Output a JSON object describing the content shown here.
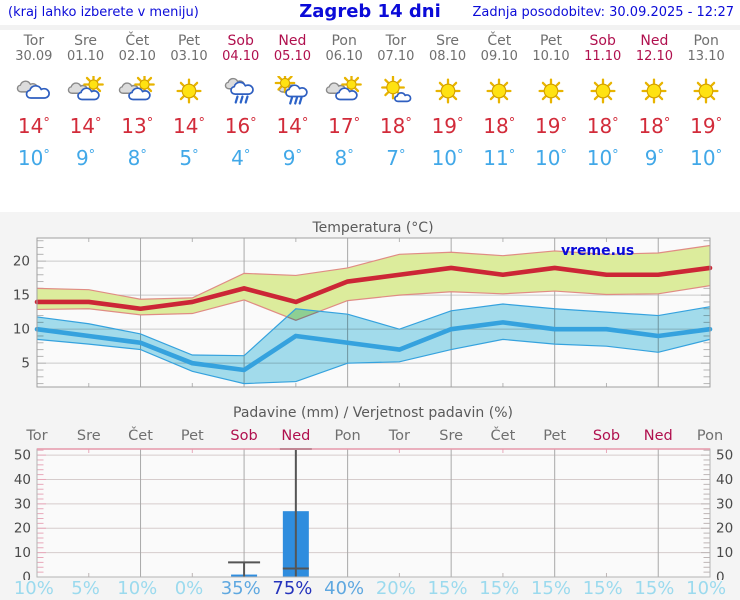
{
  "header": {
    "note_left": "(kraj lahko izberete v meniju)",
    "title": "Zagreb 14 dni",
    "updated": "Zadnja posodobitev: 30.09.2025 - 12:27"
  },
  "degree_symbol": "°",
  "watermark": "vreme.us",
  "days": [
    {
      "name": "Tor",
      "date": "30.09",
      "weekend": false,
      "icon": "cloudy",
      "tmax": 14,
      "tmin": 10,
      "precip_prob": "10%",
      "prob_level": "low"
    },
    {
      "name": "Sre",
      "date": "01.10",
      "weekend": false,
      "icon": "sun-cloud",
      "tmax": 14,
      "tmin": 9,
      "precip_prob": "5%",
      "prob_level": "low"
    },
    {
      "name": "Čet",
      "date": "02.10",
      "weekend": false,
      "icon": "sun-cloud",
      "tmax": 13,
      "tmin": 8,
      "precip_prob": "10%",
      "prob_level": "low"
    },
    {
      "name": "Pet",
      "date": "03.10",
      "weekend": false,
      "icon": "sunny",
      "tmax": 14,
      "tmin": 5,
      "precip_prob": "0%",
      "prob_level": "low"
    },
    {
      "name": "Sob",
      "date": "04.10",
      "weekend": true,
      "icon": "rain",
      "tmax": 16,
      "tmin": 4,
      "precip_prob": "35%",
      "prob_level": "med"
    },
    {
      "name": "Ned",
      "date": "05.10",
      "weekend": true,
      "icon": "sun-rain",
      "tmax": 14,
      "tmin": 9,
      "precip_prob": "75%",
      "prob_level": "high"
    },
    {
      "name": "Pon",
      "date": "06.10",
      "weekend": false,
      "icon": "sun-cloud",
      "tmax": 17,
      "tmin": 8,
      "precip_prob": "40%",
      "prob_level": "med"
    },
    {
      "name": "Tor",
      "date": "07.10",
      "weekend": false,
      "icon": "sun-small-cloud",
      "tmax": 18,
      "tmin": 7,
      "precip_prob": "20%",
      "prob_level": "low"
    },
    {
      "name": "Sre",
      "date": "08.10",
      "weekend": false,
      "icon": "sunny",
      "tmax": 19,
      "tmin": 10,
      "precip_prob": "15%",
      "prob_level": "low"
    },
    {
      "name": "Čet",
      "date": "09.10",
      "weekend": false,
      "icon": "sunny",
      "tmax": 18,
      "tmin": 11,
      "precip_prob": "15%",
      "prob_level": "low"
    },
    {
      "name": "Pet",
      "date": "10.10",
      "weekend": false,
      "icon": "sunny",
      "tmax": 19,
      "tmin": 10,
      "precip_prob": "15%",
      "prob_level": "low"
    },
    {
      "name": "Sob",
      "date": "11.10",
      "weekend": true,
      "icon": "sunny",
      "tmax": 18,
      "tmin": 10,
      "precip_prob": "15%",
      "prob_level": "low"
    },
    {
      "name": "Ned",
      "date": "12.10",
      "weekend": true,
      "icon": "sunny",
      "tmax": 18,
      "tmin": 9,
      "precip_prob": "15%",
      "prob_level": "low"
    },
    {
      "name": "Pon",
      "date": "13.10",
      "weekend": false,
      "icon": "sunny",
      "tmax": 19,
      "tmin": 10,
      "precip_prob": "10%",
      "prob_level": "low"
    }
  ],
  "chart_data": [
    {
      "type": "line",
      "title": "Temperatura (°C)",
      "x_labels": [
        "Tor 30.09",
        "Sre 01.10",
        "Čet 02.10",
        "Pet 03.10",
        "Sob 04.10",
        "Ned 05.10",
        "Pon 06.10",
        "Tor 07.10",
        "Sre 08.10",
        "Čet 09.10",
        "Pet 10.10",
        "Sob 11.10",
        "Ned 12.10",
        "Pon 13.10"
      ],
      "ylabel": "",
      "yticks": [
        5,
        10,
        15,
        20
      ],
      "ylim": [
        1.5,
        23.4
      ],
      "grid": true,
      "watermark": "vreme.us",
      "series": [
        {
          "name": "temp-max",
          "color": "#cc2636",
          "values": [
            14,
            14,
            13,
            14,
            16,
            14,
            17,
            18,
            19,
            18,
            19,
            18,
            18,
            19
          ]
        },
        {
          "name": "temp-min",
          "color": "#35a2de",
          "values": [
            10,
            9,
            8,
            5,
            4,
            9,
            8,
            7,
            10,
            11,
            10,
            10,
            9,
            10
          ]
        }
      ],
      "bands": [
        {
          "name": "temp-max-range",
          "fill": "#dcec9c",
          "edge": "#e08c84",
          "hi": [
            16,
            15.8,
            14.4,
            14.6,
            18.2,
            17.9,
            19,
            21,
            21.3,
            20.8,
            21.5,
            21,
            21.2,
            22.3
          ],
          "lo": [
            12.9,
            13,
            12.1,
            12.3,
            14.3,
            11.3,
            14.2,
            15,
            15.5,
            15.2,
            15.6,
            15.1,
            15.2,
            16.4
          ]
        },
        {
          "name": "temp-min-range",
          "fill": "#a5e0f0",
          "edge": "#35a2de",
          "hi": [
            11.8,
            10.8,
            9.3,
            6.2,
            6.1,
            13,
            12.2,
            10,
            12.7,
            13.7,
            13,
            12.5,
            12,
            13.3
          ],
          "lo": [
            8.5,
            7.8,
            7,
            3.8,
            2,
            2.3,
            5,
            5.2,
            7,
            8.5,
            7.8,
            7.5,
            6.6,
            8.5
          ]
        }
      ]
    },
    {
      "type": "bar",
      "title": "Padavine (mm) / Verjetnost padavin (%)",
      "categories": [
        "Tor",
        "Sre",
        "Čet",
        "Pet",
        "Sob",
        "Ned",
        "Pon",
        "Tor",
        "Sre",
        "Čet",
        "Pet",
        "Sob",
        "Ned",
        "Pon"
      ],
      "weekend_flags": [
        false,
        false,
        false,
        false,
        true,
        true,
        false,
        false,
        false,
        false,
        false,
        true,
        true,
        false
      ],
      "values_mm": [
        0,
        0,
        0,
        0,
        1,
        27,
        0,
        0,
        0,
        0,
        0,
        0,
        0,
        0
      ],
      "whisker_max_mm": [
        0,
        0,
        0,
        0,
        6,
        52.5,
        0,
        0,
        0,
        0,
        0,
        0,
        0,
        0
      ],
      "whisker_mark_mm": [
        null,
        null,
        null,
        null,
        null,
        3.5,
        null,
        null,
        null,
        null,
        null,
        null,
        null,
        null
      ],
      "probabilities": [
        "10%",
        "5%",
        "10%",
        "0%",
        "35%",
        "75%",
        "40%",
        "20%",
        "15%",
        "15%",
        "15%",
        "15%",
        "15%",
        "10%"
      ],
      "yticks": [
        0,
        10,
        20,
        30,
        40,
        50
      ],
      "ylim": [
        0,
        52.5
      ],
      "grid": true
    }
  ],
  "colors": {
    "header_text": "#0b0bd8",
    "day_text": "#6f6f6f",
    "weekend_text": "#b0104e",
    "tmax_text": "#d22b3a",
    "tmin_text": "#41a8e8",
    "chart_title": "#5a5a5a",
    "axis_text": "#4a4a4a",
    "bar": "#2f8dde",
    "whisker": "#555555",
    "precip_top_border": "#e598aa",
    "prob_levels": {
      "low": "#9bdaee",
      "med": "#5fa8e0",
      "high": "#2433bc"
    }
  }
}
